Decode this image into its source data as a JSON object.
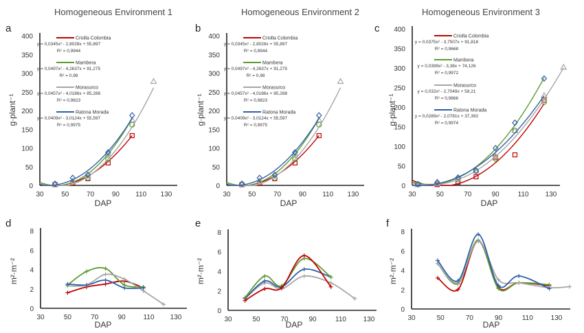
{
  "colors": {
    "Criolla Colombia": "#c00000",
    "Mambera": "#5b9b30",
    "Morasurco": "#a6a6a6",
    "Ratona Morada": "#2f5fa7"
  },
  "chart_data": [
    {
      "panel": "a",
      "title": "Homogeneous Environment 1",
      "type": "line",
      "xlabel": "DAP",
      "ylabel": "g·plant⁻¹",
      "xlim": [
        30,
        130
      ],
      "ylim": [
        0,
        400
      ],
      "xticks": [
        "30",
        "50",
        "70",
        "90",
        "110",
        "130"
      ],
      "yticks": [
        "0",
        "50",
        "100",
        "150",
        "200",
        "250",
        "300",
        "350",
        "400"
      ],
      "series": [
        {
          "name": "Criolla Colombia",
          "marker": "square",
          "x": [
            42,
            56,
            68,
            84,
            103
          ],
          "y": [
            2,
            5,
            18,
            60,
            133
          ],
          "equation": "y = 0,0345x² - 2,8028x + 55,897",
          "r2": "R² = 0,9944",
          "coef": [
            0.0345,
            -2.8028,
            55.897
          ]
        },
        {
          "name": "Mambera",
          "marker": "circle",
          "x": [
            42,
            56,
            68,
            84,
            103
          ],
          "y": [
            3,
            8,
            20,
            70,
            162
          ],
          "equation": "y = 0,0497x² - 4,2637x + 91,275",
          "r2": "R² = 0,98",
          "coef": [
            0.0497,
            -4.2637,
            91.275
          ]
        },
        {
          "name": "Morasurco",
          "marker": "triangle",
          "x": [
            42,
            56,
            68,
            84,
            103,
            120
          ],
          "y": [
            3,
            12,
            25,
            85,
            175,
            278
          ],
          "equation": "y = 0,0457x² - 4,0186x + 85,288",
          "r2": "R² = 0,9823",
          "coef": [
            0.0457,
            -4.0186,
            85.288
          ]
        },
        {
          "name": "Ratona Morada",
          "marker": "diamond",
          "x": [
            42,
            56,
            68,
            84,
            103
          ],
          "y": [
            4,
            20,
            28,
            88,
            187
          ],
          "equation": "y = 0,0409x² - 3,0124x + 55,597",
          "r2": "R² = 0,9975",
          "coef": [
            0.0409,
            -3.0124,
            55.597
          ]
        }
      ]
    },
    {
      "panel": "b",
      "title": "Homogeneous Environment 2",
      "type": "line",
      "xlabel": "DAP",
      "ylabel": "g·plant⁻¹",
      "xlim": [
        30,
        130
      ],
      "ylim": [
        0,
        400
      ],
      "xticks": [
        "30",
        "50",
        "70",
        "90",
        "110",
        "130"
      ],
      "yticks": [
        "0",
        "50",
        "100",
        "150",
        "200",
        "250",
        "300",
        "350",
        "400"
      ],
      "series": [
        {
          "name": "Criolla Colombia",
          "marker": "square",
          "x": [
            42,
            56,
            68,
            84,
            103
          ],
          "y": [
            2,
            5,
            18,
            60,
            133
          ],
          "equation": "y = 0,0345x² - 2,8028x + 55,897",
          "r2": "R² = 0,9944",
          "coef": [
            0.0345,
            -2.8028,
            55.897
          ]
        },
        {
          "name": "Mambera",
          "marker": "circle",
          "x": [
            42,
            56,
            68,
            84,
            103
          ],
          "y": [
            3,
            8,
            20,
            70,
            162
          ],
          "equation": "y = 0,0497x² - 4,2637x + 91,275",
          "r2": "R² = 0,98",
          "coef": [
            0.0497,
            -4.2637,
            91.275
          ]
        },
        {
          "name": "Morasurco",
          "marker": "triangle",
          "x": [
            42,
            56,
            68,
            84,
            103,
            120
          ],
          "y": [
            3,
            12,
            25,
            85,
            175,
            278
          ],
          "equation": "y = 0,0457x² - 4,0186x + 85,288",
          "r2": "R² = 0,9823",
          "coef": [
            0.0457,
            -4.0186,
            85.288
          ]
        },
        {
          "name": "Ratona Morada",
          "marker": "diamond",
          "x": [
            42,
            56,
            68,
            84,
            103
          ],
          "y": [
            4,
            20,
            28,
            88,
            187
          ],
          "equation": "y = 0,0409x² - 3,0124x + 55,597",
          "r2": "R² = 0,9975",
          "coef": [
            0.0409,
            -3.0124,
            55.597
          ]
        }
      ]
    },
    {
      "panel": "c",
      "title": "Homogeneous Environment 3",
      "type": "line",
      "xlabel": "DAP",
      "ylabel": "g·plant⁻¹",
      "xlim": [
        30,
        130
      ],
      "ylim": [
        0,
        400
      ],
      "xticks": [
        "30",
        "50",
        "70",
        "90",
        "110",
        "130"
      ],
      "yticks": [
        "0",
        "50",
        "100",
        "150",
        "200",
        "250",
        "300",
        "350",
        "400"
      ],
      "series": [
        {
          "name": "Criolla Colombia",
          "marker": "square",
          "x": [
            34,
            48,
            63,
            76,
            90,
            104,
            125
          ],
          "y": [
            2,
            2,
            8,
            22,
            72,
            78,
            218
          ],
          "equation": "y = 0,0375x² - 3,7507x + 91,818",
          "r2": "R² = 0,9668",
          "coef": [
            0.0375,
            -3.7507,
            91.818
          ]
        },
        {
          "name": "Mambera",
          "marker": "circle",
          "x": [
            34,
            48,
            63,
            76,
            90,
            104,
            125
          ],
          "y": [
            3,
            5,
            15,
            37,
            68,
            140,
            213
          ],
          "equation": "y = 0,0399x² - 3,38x + 74,126",
          "r2": "R² = 0,9972",
          "coef": [
            0.0399,
            -3.38,
            74.126
          ]
        },
        {
          "name": "Morasurco",
          "marker": "triangle",
          "x": [
            34,
            48,
            63,
            76,
            90,
            104,
            125,
            139
          ],
          "y": [
            2,
            5,
            18,
            37,
            75,
            140,
            230,
            302
          ],
          "equation": "y = 0,032x² - 2,7049x + 58,21",
          "r2": "R² = 0,9866",
          "coef": [
            0.032,
            -2.7049,
            58.21
          ]
        },
        {
          "name": "Ratona Morada",
          "marker": "diamond",
          "x": [
            34,
            48,
            63,
            76,
            90,
            104,
            125
          ],
          "y": [
            3,
            8,
            20,
            37,
            95,
            160,
            273
          ],
          "equation": "y = 0,0289x² - 2,0781x + 37,392",
          "r2": "R² = 0,9974",
          "coef": [
            0.0289,
            -2.0781,
            37.392
          ]
        }
      ]
    },
    {
      "panel": "d",
      "type": "line",
      "xlabel": "DAP",
      "ylabel": "m²·m⁻²",
      "xlim": [
        30,
        130
      ],
      "ylim": [
        0,
        8
      ],
      "xticks": [
        "30",
        "50",
        "70",
        "90",
        "110",
        "130"
      ],
      "yticks": [
        "0",
        "2",
        "4",
        "6",
        "8"
      ],
      "series": [
        {
          "color": "#c00000",
          "marker": "plus",
          "x": [
            50,
            64,
            78,
            92,
            106
          ],
          "y": [
            1.6,
            2.2,
            2.5,
            2.8,
            2.1
          ]
        },
        {
          "color": "#5b9b30",
          "marker": "plus",
          "x": [
            50,
            64,
            78,
            92,
            106
          ],
          "y": [
            2.4,
            3.8,
            4.1,
            2.4,
            2.2
          ]
        },
        {
          "color": "#a6a6a6",
          "marker": "plus",
          "x": [
            50,
            64,
            78,
            92,
            106,
            121
          ],
          "y": [
            2.3,
            2.4,
            3.5,
            3.0,
            1.8,
            0.4
          ]
        },
        {
          "color": "#2f5fa7",
          "marker": "plus",
          "x": [
            50,
            64,
            78,
            92,
            106
          ],
          "y": [
            2.5,
            2.4,
            2.9,
            2.1,
            2.1
          ]
        }
      ]
    },
    {
      "panel": "e",
      "type": "line",
      "xlabel": "DAP",
      "ylabel": "m²·m⁻²",
      "xlim": [
        30,
        130
      ],
      "ylim": [
        0,
        8
      ],
      "xticks": [
        "30",
        "50",
        "70",
        "90",
        "110",
        "130"
      ],
      "yticks": [
        "0",
        "2",
        "4",
        "6",
        "8"
      ],
      "series": [
        {
          "color": "#a6a6a6",
          "marker": "plus",
          "x": [
            42,
            56,
            68,
            84,
            103,
            120
          ],
          "y": [
            1.2,
            2.8,
            2.2,
            3.5,
            2.8,
            1.2
          ]
        },
        {
          "color": "#2f5fa7",
          "marker": "plus",
          "x": [
            42,
            56,
            68,
            84,
            103
          ],
          "y": [
            1.2,
            3.0,
            2.4,
            4.2,
            3.4
          ]
        },
        {
          "color": "#5b9b30",
          "marker": "plus",
          "x": [
            42,
            56,
            68,
            84,
            103
          ],
          "y": [
            1.3,
            3.5,
            2.5,
            5.3,
            3.4
          ]
        },
        {
          "color": "#c00000",
          "marker": "plus",
          "x": [
            42,
            56,
            68,
            84,
            103
          ],
          "y": [
            1.0,
            2.2,
            2.3,
            5.6,
            2.4
          ]
        }
      ]
    },
    {
      "panel": "f",
      "type": "line",
      "xlabel": "DAP",
      "ylabel": "m²·m⁻²",
      "xlim": [
        30,
        130
      ],
      "ylim": [
        0,
        8
      ],
      "xticks": [
        "30",
        "50",
        "70",
        "90",
        "110",
        "130"
      ],
      "yticks": [
        "0",
        "2",
        "4",
        "6",
        "8"
      ],
      "series": [
        {
          "color": "#c00000",
          "marker": "plus",
          "x": [
            48,
            62,
            76,
            90,
            104,
            125
          ],
          "y": [
            3.2,
            2.0,
            7.0,
            2.2,
            2.7,
            2.4
          ]
        },
        {
          "color": "#5b9b30",
          "marker": "plus",
          "x": [
            48,
            62,
            76,
            90,
            104,
            125
          ],
          "y": [
            4.7,
            2.6,
            7.1,
            2.1,
            2.7,
            2.5
          ]
        },
        {
          "color": "#a6a6a6",
          "marker": "plus",
          "x": [
            48,
            62,
            76,
            90,
            104,
            125,
            139
          ],
          "y": [
            4.7,
            2.7,
            7.0,
            3.0,
            2.7,
            2.2,
            2.3
          ]
        },
        {
          "color": "#2f5fa7",
          "marker": "plus",
          "x": [
            48,
            62,
            76,
            90,
            104,
            125
          ],
          "y": [
            5.0,
            2.9,
            7.7,
            2.4,
            3.4,
            2.1
          ]
        }
      ]
    }
  ]
}
